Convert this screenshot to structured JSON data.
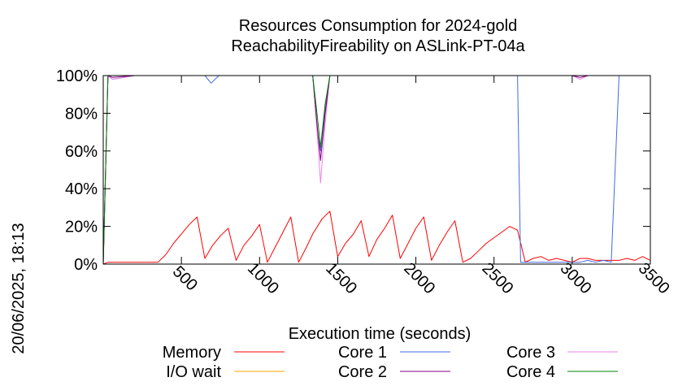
{
  "chart_data": {
    "type": "line",
    "title": "Resources Consumption for 2024-gold",
    "subtitle": "ReachabilityFireability on ASLink-PT-04a",
    "xlabel": "Execution time (seconds)",
    "ylabel": "",
    "side_label": "20/06/2025, 18:13",
    "xlim": [
      0,
      3500
    ],
    "ylim": [
      0,
      100
    ],
    "x_ticks": [
      500,
      1000,
      1500,
      2000,
      2500,
      3000,
      3500
    ],
    "x_tick_labels": [
      "500",
      "1000",
      "1500",
      "2000",
      "2500",
      "3000",
      "3500"
    ],
    "y_ticks": [
      0,
      20,
      40,
      60,
      80,
      100
    ],
    "y_tick_labels": [
      "0%",
      "20%",
      "40%",
      "60%",
      "80%",
      "100%"
    ],
    "legend": "bottom, three columns",
    "series": [
      {
        "name": "Memory",
        "color": "#ff0000",
        "x": [
          0,
          30,
          100,
          200,
          300,
          350,
          400,
          450,
          500,
          550,
          600,
          650,
          700,
          750,
          800,
          850,
          900,
          950,
          1000,
          1050,
          1100,
          1150,
          1200,
          1250,
          1300,
          1340,
          1400,
          1450,
          1500,
          1550,
          1600,
          1650,
          1700,
          1750,
          1800,
          1850,
          1900,
          1950,
          2000,
          2050,
          2100,
          2150,
          2200,
          2250,
          2300,
          2350,
          2400,
          2450,
          2500,
          2550,
          2600,
          2650,
          2700,
          2750,
          2800,
          2850,
          2900,
          2950,
          3000,
          3050,
          3100,
          3150,
          3200,
          3250,
          3300,
          3350,
          3400,
          3450,
          3500
        ],
        "y": [
          0,
          1,
          1,
          1,
          1,
          1,
          5,
          11,
          16,
          21,
          25,
          3,
          10,
          15,
          19,
          2,
          10,
          15,
          21,
          1,
          9,
          17,
          25,
          1,
          9,
          16,
          24,
          28,
          4,
          11,
          16,
          23,
          4,
          13,
          19,
          26,
          3,
          11,
          19,
          25,
          2,
          10,
          17,
          23,
          1,
          3,
          7,
          11,
          14,
          17,
          20,
          18,
          1,
          3,
          4,
          2,
          3,
          2,
          1,
          3,
          3,
          2,
          2,
          2,
          2,
          3,
          2,
          4,
          2
        ]
      },
      {
        "name": "I/O wait",
        "color": "#ffa500",
        "x": [
          0,
          3500
        ],
        "y": [
          0,
          0
        ]
      },
      {
        "name": "Core 1",
        "color": "#4169e1",
        "x": [
          0,
          30,
          60,
          200,
          600,
          650,
          690,
          740,
          1000,
          1340,
          1370,
          1390,
          1420,
          1450,
          2650,
          2670,
          2700,
          3000,
          3050,
          3100,
          3150,
          3200,
          3250,
          3300,
          3500
        ],
        "y": [
          0,
          100,
          98,
          100,
          100,
          100,
          96,
          100,
          100,
          100,
          70,
          60,
          82,
          100,
          100,
          1,
          1,
          1,
          1,
          2,
          1,
          2,
          1,
          100,
          100
        ]
      },
      {
        "name": "Core 2",
        "color": "#800080",
        "x": [
          0,
          30,
          60,
          200,
          1340,
          1370,
          1390,
          1420,
          1450,
          3000,
          3050,
          3100,
          3500
        ],
        "y": [
          0,
          100,
          99,
          100,
          100,
          72,
          55,
          80,
          100,
          100,
          99,
          100,
          100
        ]
      },
      {
        "name": "Core 3",
        "color": "#ee82ee",
        "x": [
          0,
          30,
          60,
          200,
          1340,
          1370,
          1390,
          1420,
          1450,
          3000,
          3050,
          3100,
          3500
        ],
        "y": [
          0,
          100,
          98,
          100,
          100,
          68,
          43,
          75,
          100,
          100,
          98,
          100,
          100
        ]
      },
      {
        "name": "Core 4",
        "color": "#008000",
        "x": [
          0,
          30,
          60,
          200,
          1340,
          1370,
          1390,
          1420,
          1450,
          3500
        ],
        "y": [
          0,
          100,
          100,
          100,
          100,
          78,
          62,
          85,
          100,
          100
        ]
      }
    ]
  }
}
